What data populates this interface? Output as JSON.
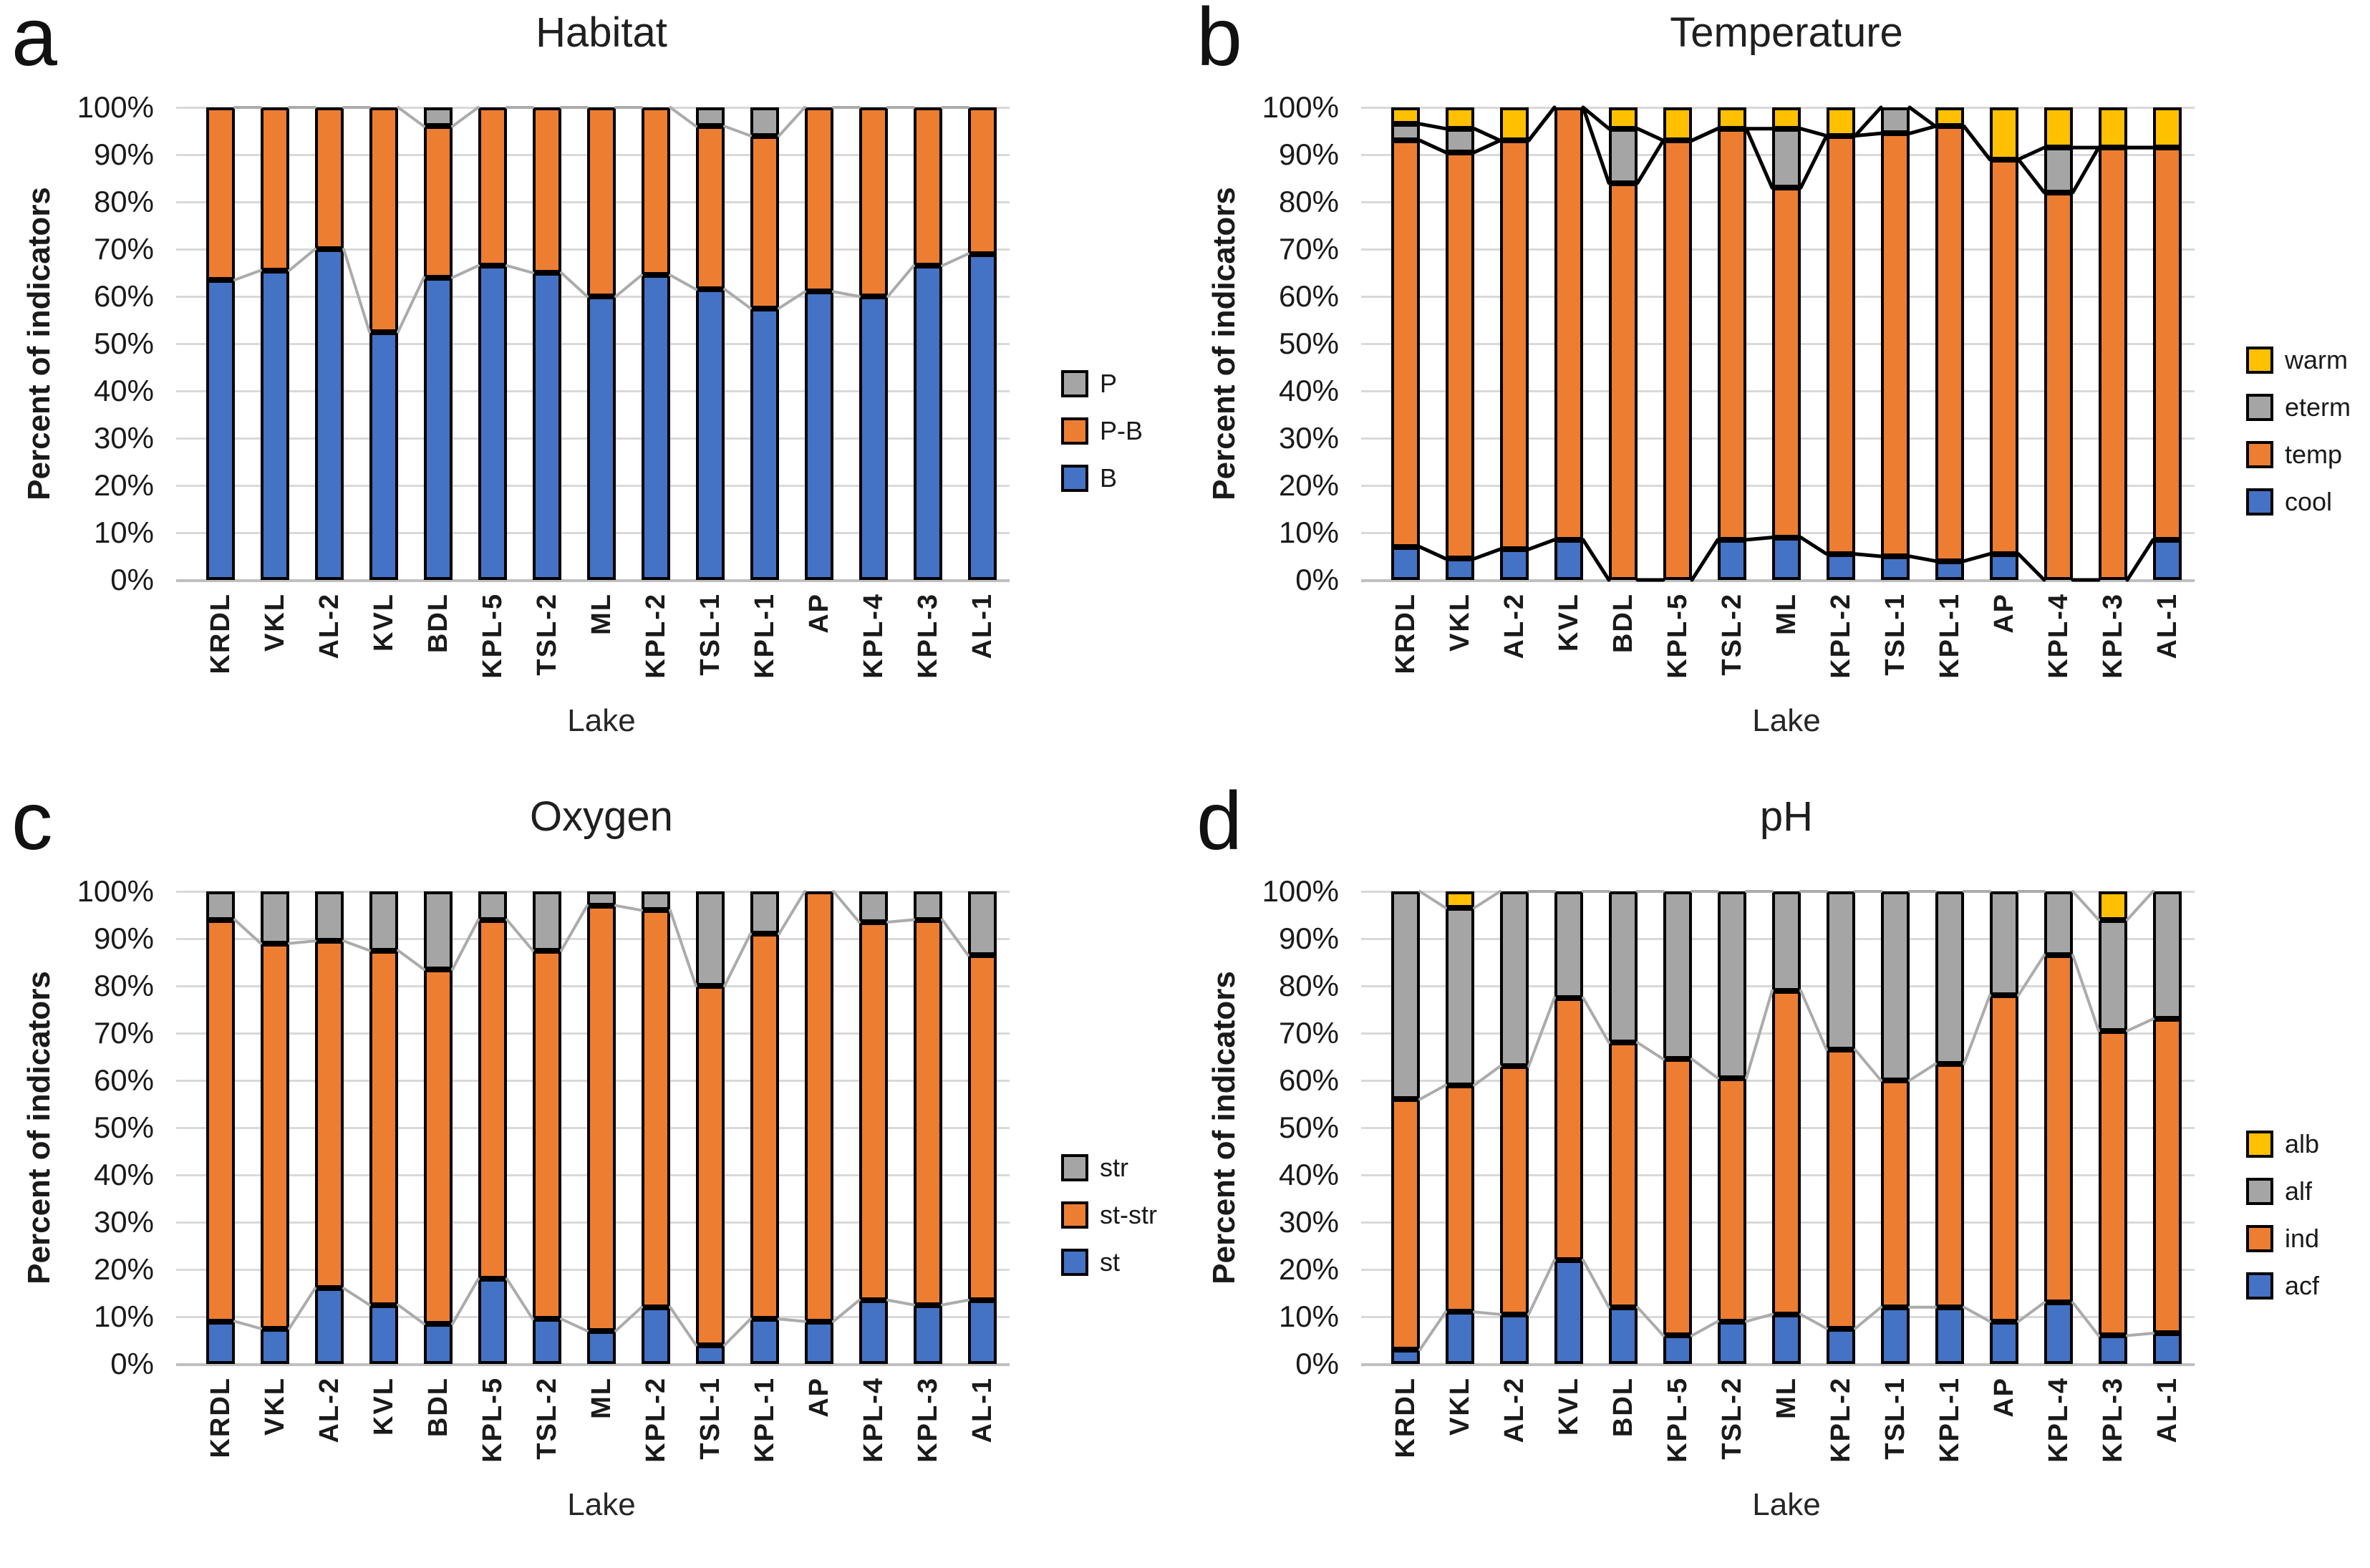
{
  "chart_data": [
    {
      "letter": "a",
      "title": "Habitat",
      "type": "bar",
      "stacked": true,
      "units": "percent",
      "xlabel": "Lake",
      "ylabel": "Percent of indicators",
      "ylim": [
        0,
        100
      ],
      "yticks": [
        "0%",
        "10%",
        "20%",
        "30%",
        "40%",
        "50%",
        "60%",
        "70%",
        "80%",
        "90%",
        "100%"
      ],
      "grid": true,
      "legend_position": "right",
      "legend_order_top_to_bottom": [
        "P",
        "P-B",
        "B"
      ],
      "series_line_color": "#ABABAB",
      "series_line_width": 4,
      "bar_outline_color": "#000000",
      "categories": [
        "KRDL",
        "VKL",
        "AL-2",
        "KVL",
        "BDL",
        "KPL-5",
        "TSL-2",
        "ML",
        "KPL-2",
        "TSL-1",
        "KPL-1",
        "AP",
        "KPL-4",
        "KPL-3",
        "AL-1"
      ],
      "series": [
        {
          "name": "B",
          "color": "#4472C4",
          "values": [
            63.5,
            65.5,
            70,
            52.5,
            64,
            66.5,
            65,
            60,
            64.5,
            61.5,
            57.5,
            61,
            60,
            66.5,
            69
          ]
        },
        {
          "name": "P-B",
          "color": "#ED7D31",
          "values": [
            36.5,
            34.5,
            30,
            47.5,
            32,
            33.5,
            35,
            40,
            35.5,
            34.5,
            36.5,
            39,
            40,
            33.5,
            31
          ]
        },
        {
          "name": "P",
          "color": "#A5A5A5",
          "values": [
            0,
            0,
            0,
            0,
            4,
            0,
            0,
            0,
            0,
            4,
            6,
            0,
            0,
            0,
            0
          ]
        }
      ]
    },
    {
      "letter": "b",
      "title": "Temperature",
      "type": "bar",
      "stacked": true,
      "units": "percent",
      "xlabel": "Lake",
      "ylabel": "Percent of indicators",
      "ylim": [
        0,
        100
      ],
      "yticks": [
        "0%",
        "10%",
        "20%",
        "30%",
        "40%",
        "50%",
        "60%",
        "70%",
        "80%",
        "90%",
        "100%"
      ],
      "grid": true,
      "legend_position": "right",
      "legend_order_top_to_bottom": [
        "warm",
        "eterm",
        "temp",
        "cool"
      ],
      "series_line_color": "#000000",
      "series_line_width": 5,
      "bar_outline_color": "#000000",
      "categories": [
        "KRDL",
        "VKL",
        "AL-2",
        "KVL",
        "BDL",
        "KPL-5",
        "TSL-2",
        "ML",
        "KPL-2",
        "TSL-1",
        "KPL-1",
        "AP",
        "KPL-4",
        "KPL-3",
        "AL-1"
      ],
      "series": [
        {
          "name": "cool",
          "color": "#4472C4",
          "values": [
            7,
            4.5,
            6.5,
            8.5,
            0,
            0,
            8.5,
            9,
            5.5,
            5,
            4,
            5.5,
            0,
            0,
            8.5
          ]
        },
        {
          "name": "temp",
          "color": "#ED7D31",
          "values": [
            86,
            86,
            86.5,
            91.5,
            84,
            93,
            87,
            74,
            88.5,
            89.5,
            92,
            83.5,
            82,
            91.5,
            83
          ]
        },
        {
          "name": "eterm",
          "color": "#A5A5A5",
          "values": [
            3.5,
            5,
            0,
            0,
            11.5,
            0,
            0,
            12.5,
            0,
            5.5,
            0,
            0,
            9.5,
            0,
            0
          ]
        },
        {
          "name": "warm",
          "color": "#FFC000",
          "values": [
            3.5,
            4.5,
            7,
            0,
            4.5,
            7,
            4.5,
            4.5,
            6,
            0,
            4,
            11,
            8.5,
            8.5,
            8.5
          ]
        }
      ]
    },
    {
      "letter": "c",
      "title": "Oxygen",
      "type": "bar",
      "stacked": true,
      "units": "percent",
      "xlabel": "Lake",
      "ylabel": "Percent of indicators",
      "ylim": [
        0,
        100
      ],
      "yticks": [
        "0%",
        "10%",
        "20%",
        "30%",
        "40%",
        "50%",
        "60%",
        "70%",
        "80%",
        "90%",
        "100%"
      ],
      "grid": true,
      "legend_position": "right",
      "legend_order_top_to_bottom": [
        "str",
        "st-str",
        "st"
      ],
      "series_line_color": "#ABABAB",
      "series_line_width": 4,
      "bar_outline_color": "#000000",
      "categories": [
        "KRDL",
        "VKL",
        "AL-2",
        "KVL",
        "BDL",
        "KPL-5",
        "TSL-2",
        "ML",
        "KPL-2",
        "TSL-1",
        "KPL-1",
        "AP",
        "KPL-4",
        "KPL-3",
        "AL-1"
      ],
      "series": [
        {
          "name": "st",
          "color": "#4472C4",
          "values": [
            9,
            7.5,
            16,
            12.5,
            8.5,
            18,
            9.5,
            7,
            12,
            4,
            9.5,
            9,
            13.5,
            12.5,
            13.5
          ]
        },
        {
          "name": "st-str",
          "color": "#ED7D31",
          "values": [
            85,
            81.5,
            73.5,
            75,
            75,
            76,
            78,
            90,
            84,
            76,
            81.5,
            91,
            80,
            81.5,
            73
          ]
        },
        {
          "name": "str",
          "color": "#A5A5A5",
          "values": [
            6,
            11,
            10.5,
            12.5,
            16.5,
            6,
            12.5,
            3,
            4,
            20,
            9,
            0,
            6.5,
            6,
            13.5
          ]
        }
      ]
    },
    {
      "letter": "d",
      "title": "pH",
      "type": "bar",
      "stacked": true,
      "units": "percent",
      "xlabel": "Lake",
      "ylabel": "Percent of indicators",
      "ylim": [
        0,
        100
      ],
      "yticks": [
        "0%",
        "10%",
        "20%",
        "30%",
        "40%",
        "50%",
        "60%",
        "70%",
        "80%",
        "90%",
        "100%"
      ],
      "grid": true,
      "legend_position": "right",
      "legend_order_top_to_bottom": [
        "alb",
        "alf",
        "ind",
        "acf"
      ],
      "series_line_color": "#ABABAB",
      "series_line_width": 4,
      "bar_outline_color": "#000000",
      "categories": [
        "KRDL",
        "VKL",
        "AL-2",
        "KVL",
        "BDL",
        "KPL-5",
        "TSL-2",
        "ML",
        "KPL-2",
        "TSL-1",
        "KPL-1",
        "AP",
        "KPL-4",
        "KPL-3",
        "AL-1"
      ],
      "series": [
        {
          "name": "acf",
          "color": "#4472C4",
          "values": [
            3,
            11,
            10.5,
            22,
            12,
            6,
            9,
            10.5,
            7.5,
            12,
            12,
            9,
            13,
            6,
            6.5
          ]
        },
        {
          "name": "ind",
          "color": "#ED7D31",
          "values": [
            53,
            48,
            52.5,
            55.5,
            56,
            58.5,
            51.5,
            68.5,
            59,
            48,
            51.5,
            69,
            73.5,
            64.5,
            66.5
          ]
        },
        {
          "name": "alf",
          "color": "#A5A5A5",
          "values": [
            44,
            37.5,
            37,
            22.5,
            32,
            35.5,
            39.5,
            21,
            33.5,
            40,
            36.5,
            22,
            13.5,
            23.5,
            27
          ]
        },
        {
          "name": "alb",
          "color": "#FFC000",
          "values": [
            0,
            3.5,
            0,
            0,
            0,
            0,
            0,
            0,
            0,
            0,
            0,
            0,
            0,
            6,
            0
          ]
        }
      ]
    }
  ]
}
